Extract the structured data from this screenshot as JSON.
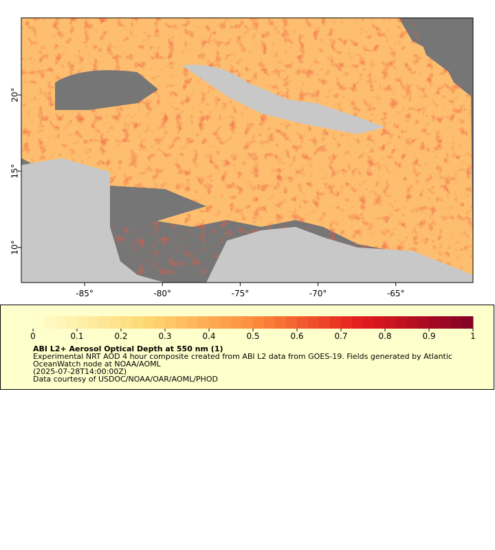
{
  "map": {
    "xlim": [
      -89.07,
      -60.04
    ],
    "ylim": [
      7.7,
      25.05
    ],
    "xticks": [
      {
        "value": -85,
        "label": "-85°"
      },
      {
        "value": -80,
        "label": "-80°"
      },
      {
        "value": -75,
        "label": "-75°"
      },
      {
        "value": -70,
        "label": "-70°"
      },
      {
        "value": -65,
        "label": "-65°"
      }
    ],
    "yticks": [
      {
        "value": 10,
        "label": "10°"
      },
      {
        "value": 15,
        "label": "15°"
      },
      {
        "value": 20,
        "label": "20°"
      }
    ]
  },
  "legend": {
    "colorbar": {
      "lim": [
        0,
        1
      ],
      "ticks": [
        0,
        0.1,
        0.2,
        0.3,
        0.4,
        0.5,
        0.6,
        0.7,
        0.8,
        0.9,
        1
      ],
      "colors": [
        "#ffffcc",
        "#fed976",
        "#fd8d3c",
        "#e31a1c",
        "#800026"
      ]
    },
    "title": "ABI L2+ Aerosol Optical Depth at 550 nm (1)",
    "lines": [
      "Experimental NRT AOD 4 hour composite created from ABI L2 data from GOES-19. Fields generated by Atlantic",
      "OceanWatch node at NOAA/AOML",
      "(2025-07-28T14:00:00Z)",
      "Data courtesy of USDOC/NOAA/OAR/AOML/PHOD"
    ]
  }
}
